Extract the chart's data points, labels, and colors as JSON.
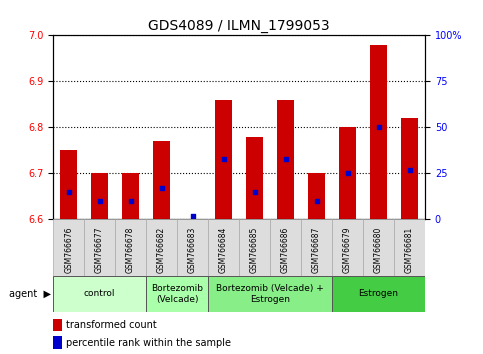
{
  "title": "GDS4089 / ILMN_1799053",
  "samples": [
    "GSM766676",
    "GSM766677",
    "GSM766678",
    "GSM766682",
    "GSM766683",
    "GSM766684",
    "GSM766685",
    "GSM766686",
    "GSM766687",
    "GSM766679",
    "GSM766680",
    "GSM766681"
  ],
  "red_values": [
    6.75,
    6.7,
    6.7,
    6.77,
    6.6,
    6.86,
    6.78,
    6.86,
    6.7,
    6.8,
    6.98,
    6.82
  ],
  "blue_values": [
    15,
    10,
    10,
    17,
    2,
    33,
    15,
    33,
    10,
    25,
    50,
    27
  ],
  "ymin": 6.6,
  "ymax": 7.0,
  "y2min": 0,
  "y2max": 100,
  "yticks": [
    6.6,
    6.7,
    6.8,
    6.9,
    7.0
  ],
  "y2ticks": [
    0,
    25,
    50,
    75,
    100
  ],
  "y2ticklabels": [
    "0",
    "25",
    "50",
    "75",
    "100%"
  ],
  "bar_color": "#cc0000",
  "dot_color": "#0000cc",
  "groups": [
    {
      "label": "control",
      "start": 0,
      "end": 3,
      "color": "#ccffcc"
    },
    {
      "label": "Bortezomib\n(Velcade)",
      "start": 3,
      "end": 5,
      "color": "#aaffaa"
    },
    {
      "label": "Bortezomib (Velcade) +\nEstrogen",
      "start": 5,
      "end": 9,
      "color": "#88ee88"
    },
    {
      "label": "Estrogen",
      "start": 9,
      "end": 12,
      "color": "#44cc44"
    }
  ],
  "bar_width": 0.55,
  "title_fontsize": 10,
  "tick_fontsize": 7,
  "sample_fontsize": 5.5,
  "group_fontsize": 6.5,
  "legend_fontsize": 7
}
